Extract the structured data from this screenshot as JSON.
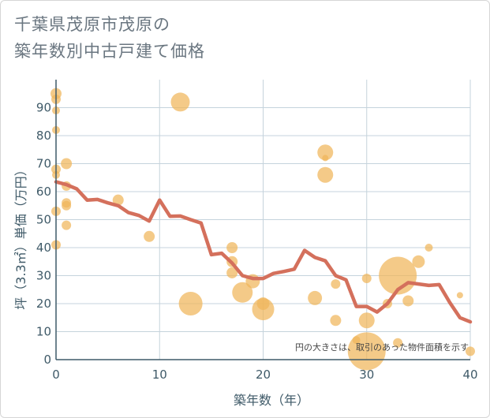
{
  "title_line1": "千葉県茂原市茂原の",
  "title_line2": "築年数別中古戸建て価格",
  "chart_data": {
    "type": "scatter",
    "title": "千葉県茂原市茂原の築年数別中古戸建て価格",
    "xlabel": "築年数（年）",
    "ylabel": "坪（3.3㎡）単価（万円）",
    "xlim": [
      0,
      40
    ],
    "ylim": [
      0,
      100
    ],
    "xticks": [
      0,
      10,
      20,
      30,
      40
    ],
    "yticks": [
      0,
      10,
      20,
      30,
      40,
      50,
      60,
      70,
      80,
      90
    ],
    "note": "円の大きさは、取引のあった物件面積を示す",
    "colors": {
      "bubble": "#f0b55a",
      "line": "#d4705c",
      "grid": "#c5d3dc",
      "axis": "#3f5a68"
    },
    "bubbles": [
      {
        "x": 0,
        "y": 95,
        "r": 7
      },
      {
        "x": 0,
        "y": 93,
        "r": 6
      },
      {
        "x": 0,
        "y": 89,
        "r": 5
      },
      {
        "x": 0,
        "y": 82,
        "r": 5
      },
      {
        "x": 0,
        "y": 68,
        "r": 6
      },
      {
        "x": 0,
        "y": 66,
        "r": 5
      },
      {
        "x": 0,
        "y": 53,
        "r": 6
      },
      {
        "x": 0,
        "y": 41,
        "r": 6
      },
      {
        "x": 1,
        "y": 70,
        "r": 7
      },
      {
        "x": 1,
        "y": 62,
        "r": 6
      },
      {
        "x": 1,
        "y": 56,
        "r": 6
      },
      {
        "x": 1,
        "y": 55,
        "r": 6
      },
      {
        "x": 1,
        "y": 48,
        "r": 6
      },
      {
        "x": 6,
        "y": 57,
        "r": 7
      },
      {
        "x": 9,
        "y": 44,
        "r": 7
      },
      {
        "x": 12,
        "y": 92,
        "r": 12
      },
      {
        "x": 13,
        "y": 20,
        "r": 15
      },
      {
        "x": 17,
        "y": 40,
        "r": 7
      },
      {
        "x": 17,
        "y": 35,
        "r": 7
      },
      {
        "x": 17,
        "y": 31,
        "r": 7
      },
      {
        "x": 18,
        "y": 24,
        "r": 13
      },
      {
        "x": 19,
        "y": 28,
        "r": 9
      },
      {
        "x": 20,
        "y": 20,
        "r": 8
      },
      {
        "x": 20,
        "y": 18,
        "r": 14
      },
      {
        "x": 25,
        "y": 22,
        "r": 9
      },
      {
        "x": 26,
        "y": 74,
        "r": 10
      },
      {
        "x": 26,
        "y": 72,
        "r": 4
      },
      {
        "x": 26,
        "y": 66,
        "r": 10
      },
      {
        "x": 27,
        "y": 27,
        "r": 6
      },
      {
        "x": 27,
        "y": 14,
        "r": 7
      },
      {
        "x": 29,
        "y": 7,
        "r": 5
      },
      {
        "x": 30,
        "y": 29,
        "r": 6
      },
      {
        "x": 30,
        "y": 14,
        "r": 10
      },
      {
        "x": 30,
        "y": 3,
        "r": 24
      },
      {
        "x": 32,
        "y": 20,
        "r": 6
      },
      {
        "x": 33,
        "y": 30,
        "r": 24
      },
      {
        "x": 33,
        "y": 6,
        "r": 6
      },
      {
        "x": 34,
        "y": 21,
        "r": 7
      },
      {
        "x": 35,
        "y": 35,
        "r": 8
      },
      {
        "x": 36,
        "y": 40,
        "r": 5
      },
      {
        "x": 39,
        "y": 23,
        "r": 4
      },
      {
        "x": 40,
        "y": 3,
        "r": 6
      }
    ],
    "series": [
      {
        "name": "average",
        "x": [
          0,
          1,
          2,
          3,
          4,
          5,
          6,
          7,
          8,
          9,
          10,
          11,
          12,
          13,
          14,
          15,
          16,
          17,
          18,
          19,
          20,
          21,
          22,
          23,
          24,
          25,
          26,
          27,
          28,
          29,
          30,
          31,
          32,
          33,
          34,
          35,
          36,
          37,
          38,
          39,
          40
        ],
        "y": [
          63.5,
          62.5,
          61,
          57,
          57.2,
          56,
          55,
          52.5,
          51.5,
          49.5,
          57,
          51.2,
          51.3,
          50,
          48.8,
          37.5,
          38,
          34.5,
          30,
          29,
          29,
          30.8,
          31.5,
          32.3,
          39,
          36.5,
          35.3,
          30,
          28.5,
          19,
          19,
          17,
          20,
          25,
          27.5,
          27,
          26.5,
          26.8,
          20.5,
          15,
          13.5
        ]
      }
    ]
  }
}
